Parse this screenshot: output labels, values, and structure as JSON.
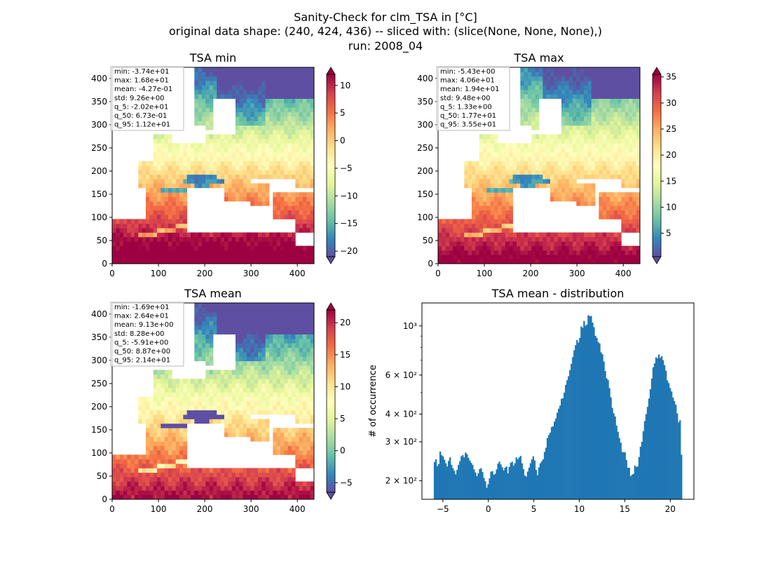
{
  "figure": {
    "title_lines": [
      "Sanity-Check for clm_TSA in [°C]",
      "original data shape: (240, 424, 436) -- sliced with: (slice(None, None, None),)",
      "run: 2008_04"
    ]
  },
  "chart_data": [
    {
      "type": "heatmap",
      "title": "TSA min",
      "x_ticks": [
        "0",
        "100",
        "200",
        "300",
        "400"
      ],
      "y_ticks": [
        "0",
        "50",
        "100",
        "150",
        "200",
        "250",
        "300",
        "350",
        "400"
      ],
      "xlim": [
        0,
        436
      ],
      "ylim": [
        0,
        424
      ],
      "colormap": "Spectral_r",
      "colorbar": {
        "vmin": -21,
        "vmax": 12,
        "ticks": [
          "10",
          "5",
          "0",
          "−5",
          "−10",
          "−15",
          "−20"
        ],
        "extend": "both"
      },
      "stats": [
        "min: -3.74e+01",
        "max: 1.68e+01",
        "mean: -4.27e-01",
        "std: 9.26e+00",
        "q_5: -2.02e+01",
        "q_50: 6.73e-01",
        "q_95: 1.12e+01"
      ]
    },
    {
      "type": "heatmap",
      "title": "TSA max",
      "x_ticks": [
        "0",
        "100",
        "200",
        "300",
        "400"
      ],
      "y_ticks": [
        "0",
        "50",
        "100",
        "150",
        "200",
        "250",
        "300",
        "350",
        "400"
      ],
      "xlim": [
        0,
        436
      ],
      "ylim": [
        0,
        424
      ],
      "colormap": "Spectral_r",
      "colorbar": {
        "vmin": 0.5,
        "vmax": 35.5,
        "ticks": [
          "35",
          "30",
          "25",
          "20",
          "15",
          "10",
          "5"
        ],
        "extend": "both"
      },
      "stats": [
        "min: -5.43e+00",
        "max: 4.06e+01",
        "mean: 1.94e+01",
        "std: 9.48e+00",
        "q_5: 1.33e+00",
        "q_50: 1.77e+01",
        "q_95: 3.55e+01"
      ]
    },
    {
      "type": "heatmap",
      "title": "TSA mean",
      "x_ticks": [
        "0",
        "100",
        "200",
        "300",
        "400"
      ],
      "y_ticks": [
        "0",
        "50",
        "100",
        "150",
        "200",
        "250",
        "300",
        "350",
        "400"
      ],
      "xlim": [
        0,
        436
      ],
      "ylim": [
        0,
        424
      ],
      "colormap": "Spectral_r",
      "colorbar": {
        "vmin": -6.5,
        "vmax": 22,
        "ticks": [
          "20",
          "15",
          "10",
          "5",
          "0",
          "−5"
        ],
        "extend": "both"
      },
      "stats": [
        "min: -1.69e+01",
        "max: 2.64e+01",
        "mean: 9.13e+00",
        "std: 8.28e+00",
        "q_5: -5.91e+00",
        "q_50: 8.87e+00",
        "q_95: 2.14e+01"
      ]
    },
    {
      "type": "bar",
      "title": "TSA mean - distribution",
      "ylabel": "# of occurrence",
      "yscale": "log",
      "x_ticks": [
        "−5",
        "0",
        "5",
        "10",
        "15",
        "20"
      ],
      "y_ticks": [
        "2 × 10²",
        "3 × 10²",
        "4 × 10²",
        "6 × 10²",
        "10³"
      ],
      "xlim": [
        -7.3,
        22.6
      ],
      "ylim": [
        165,
        1270
      ],
      "color": "#1f77b4",
      "bins": {
        "x_start": -6.0,
        "x_end": 21.3
      },
      "values": [
        243,
        250,
        233,
        238,
        271,
        261,
        258,
        249,
        240,
        232,
        246,
        255,
        236,
        228,
        222,
        214,
        224,
        236,
        245,
        258,
        261,
        255,
        268,
        264,
        254,
        247,
        241,
        236,
        225,
        218,
        210,
        216,
        226,
        228,
        219,
        206,
        199,
        186,
        193,
        205,
        220,
        221,
        213,
        215,
        225,
        239,
        244,
        237,
        230,
        223,
        229,
        232,
        216,
        231,
        241,
        244,
        234,
        240,
        255,
        250,
        255,
        259,
        240,
        226,
        211,
        209,
        220,
        229,
        240,
        250,
        258,
        247,
        224,
        212,
        230,
        240,
        245,
        250,
        270,
        282,
        312,
        322,
        330,
        350,
        352,
        370,
        382,
        406,
        423,
        437,
        469,
        471,
        500,
        542,
        569,
        593,
        632,
        675,
        724,
        777,
        819,
        864,
        841,
        883,
        994,
        981,
        1053,
        1002,
        1014,
        1118,
        1107,
        1109,
        1036,
        988,
        902,
        884,
        846,
        834,
        760,
        745,
        691,
        626,
        580,
        570,
        524,
        476,
        427,
        403,
        390,
        355,
        333,
        312,
        297,
        270,
        269,
        269,
        248,
        229,
        229,
        210,
        213,
        215,
        234,
        231,
        232,
        256,
        285,
        300,
        335,
        372,
        400,
        431,
        470,
        518,
        579,
        651,
        678,
        722,
        713,
        743,
        718,
        730,
        701,
        665,
        628,
        568,
        552,
        524,
        506,
        475,
        458,
        441,
        403,
        367,
        375,
        262
      ]
    }
  ]
}
